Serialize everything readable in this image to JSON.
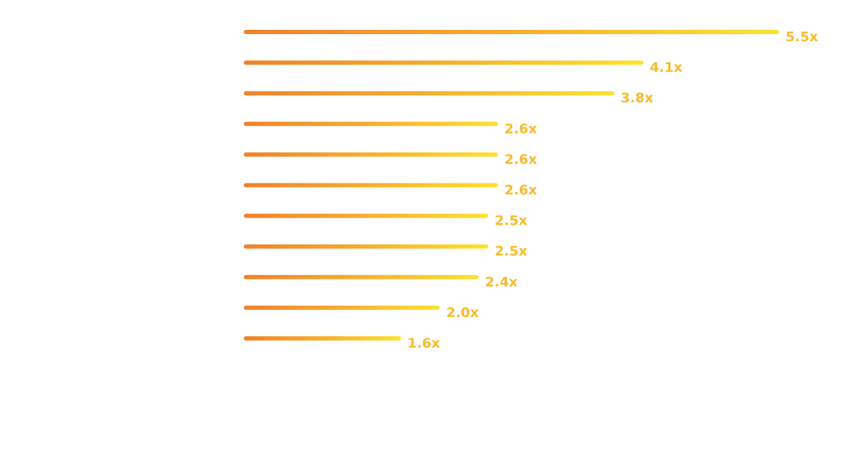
{
  "chart_data": {
    "type": "bar",
    "orientation": "horizontal",
    "title": "",
    "xlabel": "",
    "ylabel": "",
    "xlim": [
      0,
      5.5
    ],
    "grid": false,
    "legend": "none",
    "values": [
      5.5,
      4.1,
      3.8,
      2.6,
      2.6,
      2.6,
      2.5,
      2.5,
      2.4,
      2.0,
      1.6
    ],
    "labels": [
      "5.5x",
      "4.1x",
      "3.8x",
      "2.6x",
      "2.6x",
      "2.6x",
      "2.5x",
      "2.5x",
      "2.4x",
      "2.0x",
      "1.6x"
    ],
    "colors": {
      "gradient_start": "#f0812a",
      "gradient_mid": "#f7ae2e",
      "gradient_end": "#fde22f",
      "label": "#f8bb2d"
    }
  }
}
